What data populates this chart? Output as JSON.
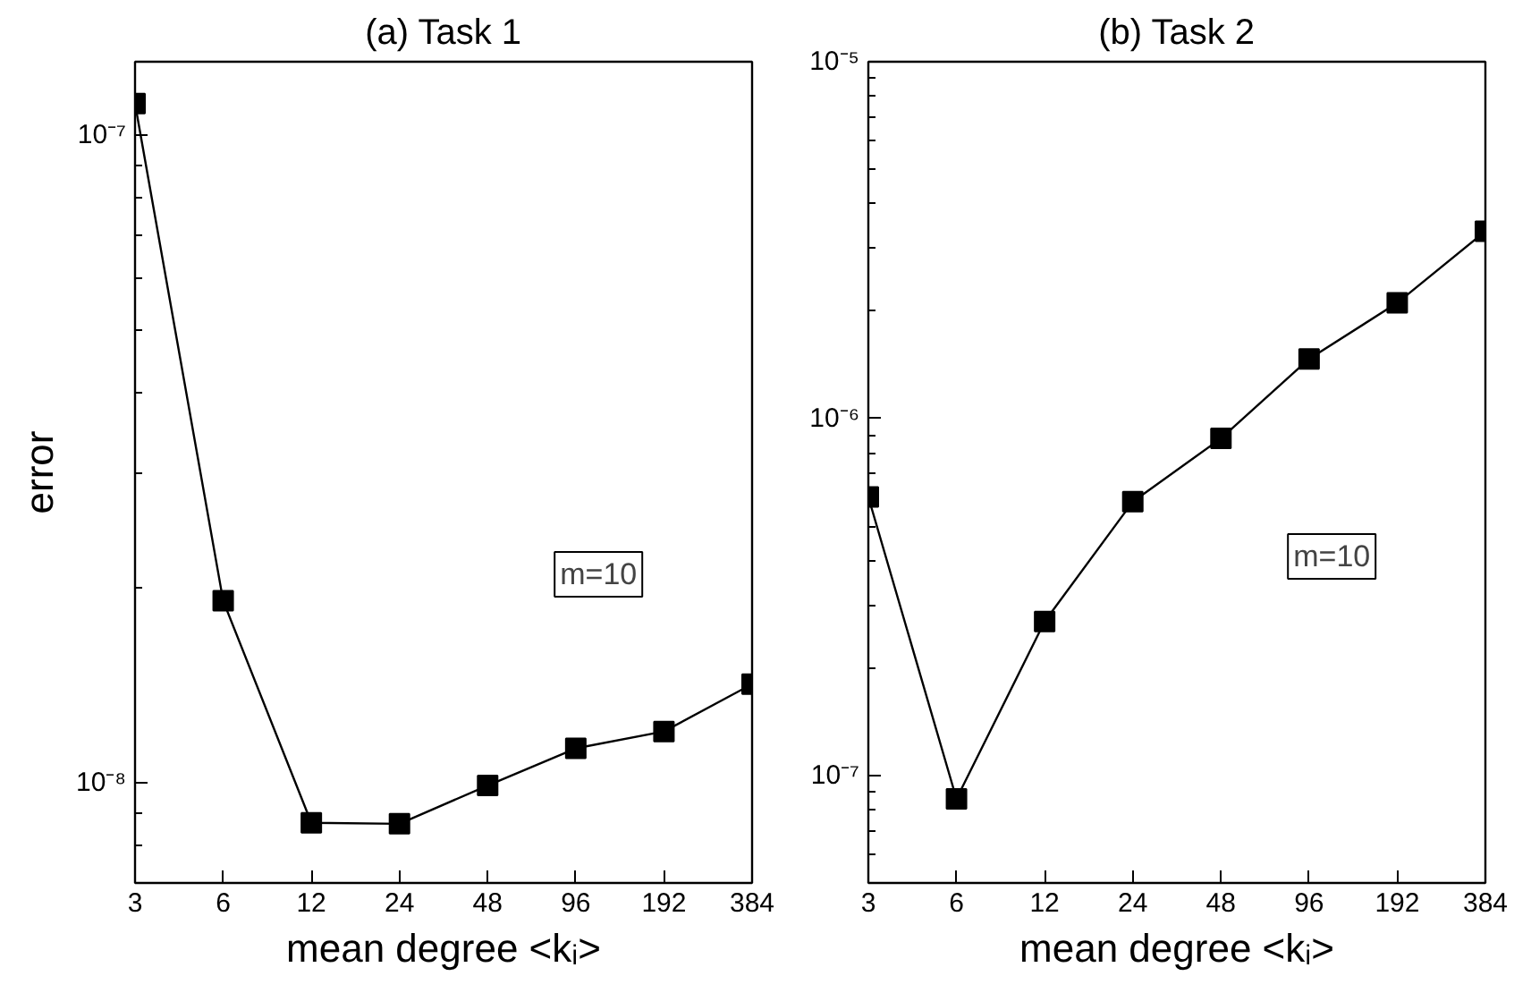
{
  "chart_data": [
    {
      "type": "line",
      "title": "(a) Task 1",
      "xlabel": "mean degree <kᵢ>",
      "ylabel": "error",
      "categories": [
        "3",
        "6",
        "12",
        "24",
        "48",
        "96",
        "192",
        "384"
      ],
      "series": [
        {
          "color": "#000000",
          "values": [
            1.12e-07,
            1.91e-08,
            8.67e-09,
            8.64e-09,
            9.9e-09,
            1.13e-08,
            1.2e-08,
            1.42e-08
          ]
        }
      ],
      "log": true,
      "ylim": [
        7e-09,
        1.3e-07
      ],
      "yticks": [
        {
          "value": 1e-08,
          "label": "10⁻⁸"
        },
        {
          "value": 1e-07,
          "label": "10⁻⁷"
        }
      ],
      "marker": "square",
      "line_style": "solid",
      "annotations": [
        "m=10"
      ]
    },
    {
      "type": "line",
      "title": "(b) Task 2",
      "xlabel": "mean degree <kᵢ>",
      "categories": [
        "3",
        "6",
        "12",
        "24",
        "48",
        "96",
        "192",
        "384"
      ],
      "series": [
        {
          "color": "#000000",
          "values": [
            6.03e-07,
            8.6e-08,
            2.7e-07,
            5.85e-07,
            8.8e-07,
            1.47e-06,
            2.11e-06,
            3.35e-06
          ]
        }
      ],
      "log": true,
      "ylim": [
        5e-08,
        1e-05
      ],
      "yticks": [
        {
          "value": 1e-07,
          "label": "10⁻⁷"
        },
        {
          "value": 1e-06,
          "label": "10⁻⁶"
        },
        {
          "value": 1e-05,
          "label": "10⁻⁵"
        }
      ],
      "marker": "square",
      "line_style": "solid",
      "annotations": [
        "m=10"
      ]
    }
  ]
}
